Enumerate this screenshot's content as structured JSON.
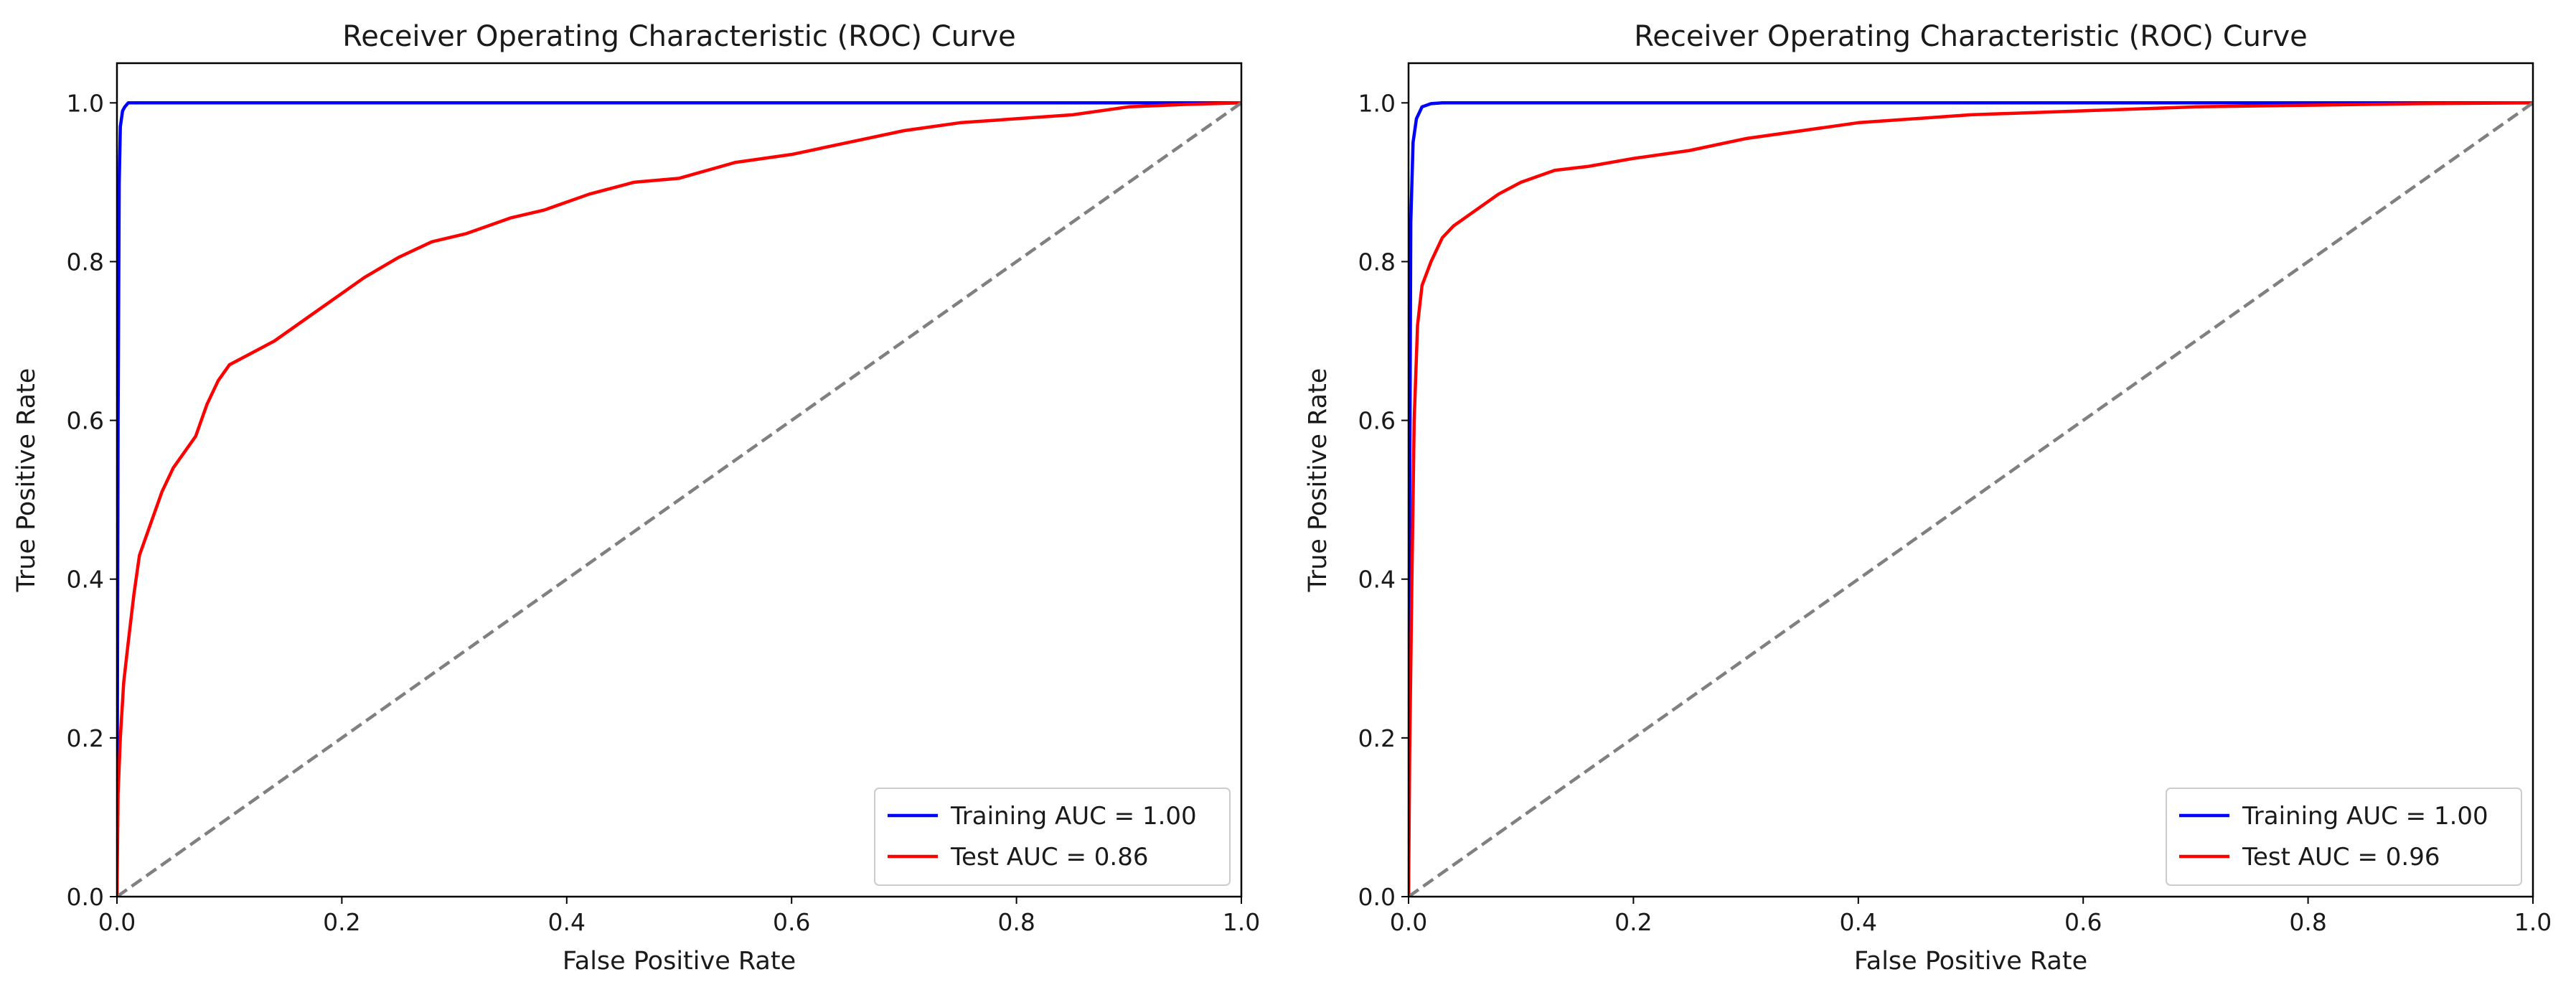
{
  "chart_data": [
    {
      "type": "line",
      "title": "Receiver Operating Characteristic (ROC) Curve",
      "xlabel": "False Positive Rate",
      "ylabel": "True Positive Rate",
      "xlim": [
        0,
        1
      ],
      "ylim": [
        0,
        1.05
      ],
      "xticks": [
        0.0,
        0.2,
        0.4,
        0.6,
        0.8,
        1.0
      ],
      "xtick_labels": [
        "0.0",
        "0.2",
        "0.4",
        "0.6",
        "0.8",
        "1.0"
      ],
      "yticks": [
        0.0,
        0.2,
        0.4,
        0.6,
        0.8,
        1.0
      ],
      "ytick_labels": [
        "0.0",
        "0.2",
        "0.4",
        "0.6",
        "0.8",
        "1.0"
      ],
      "grid": false,
      "legend_position": "lower-right",
      "series": [
        {
          "name": "Training AUC = 1.00",
          "color": "#0000ff",
          "points": [
            [
              0,
              0
            ],
            [
              0.001,
              0.6
            ],
            [
              0.002,
              0.9
            ],
            [
              0.003,
              0.97
            ],
            [
              0.005,
              0.99
            ],
            [
              0.007,
              0.995
            ],
            [
              0.01,
              1.0
            ],
            [
              1.0,
              1.0
            ]
          ]
        },
        {
          "name": "Test AUC = 0.86",
          "color": "#ff0000",
          "points": [
            [
              0,
              0
            ],
            [
              0.001,
              0.13
            ],
            [
              0.003,
              0.2
            ],
            [
              0.006,
              0.27
            ],
            [
              0.01,
              0.32
            ],
            [
              0.015,
              0.38
            ],
            [
              0.02,
              0.43
            ],
            [
              0.03,
              0.47
            ],
            [
              0.04,
              0.51
            ],
            [
              0.05,
              0.54
            ],
            [
              0.06,
              0.56
            ],
            [
              0.07,
              0.58
            ],
            [
              0.08,
              0.62
            ],
            [
              0.09,
              0.65
            ],
            [
              0.1,
              0.67
            ],
            [
              0.12,
              0.685
            ],
            [
              0.14,
              0.7
            ],
            [
              0.16,
              0.72
            ],
            [
              0.18,
              0.74
            ],
            [
              0.2,
              0.76
            ],
            [
              0.22,
              0.78
            ],
            [
              0.25,
              0.805
            ],
            [
              0.28,
              0.825
            ],
            [
              0.31,
              0.835
            ],
            [
              0.35,
              0.855
            ],
            [
              0.38,
              0.865
            ],
            [
              0.42,
              0.885
            ],
            [
              0.46,
              0.9
            ],
            [
              0.5,
              0.905
            ],
            [
              0.55,
              0.925
            ],
            [
              0.6,
              0.935
            ],
            [
              0.65,
              0.95
            ],
            [
              0.7,
              0.965
            ],
            [
              0.75,
              0.975
            ],
            [
              0.8,
              0.98
            ],
            [
              0.85,
              0.985
            ],
            [
              0.9,
              0.995
            ],
            [
              0.95,
              0.998
            ],
            [
              1.0,
              1.0
            ]
          ]
        },
        {
          "name": "",
          "color": "#808080",
          "dashed": true,
          "points": [
            [
              0,
              0
            ],
            [
              1,
              1
            ]
          ]
        }
      ]
    },
    {
      "type": "line",
      "title": "Receiver Operating Characteristic (ROC) Curve",
      "xlabel": "False Positive Rate",
      "ylabel": "True Positive Rate",
      "xlim": [
        0,
        1
      ],
      "ylim": [
        0,
        1.05
      ],
      "xticks": [
        0.0,
        0.2,
        0.4,
        0.6,
        0.8,
        1.0
      ],
      "xtick_labels": [
        "0.0",
        "0.2",
        "0.4",
        "0.6",
        "0.8",
        "1.0"
      ],
      "yticks": [
        0.0,
        0.2,
        0.4,
        0.6,
        0.8,
        1.0
      ],
      "ytick_labels": [
        "0.0",
        "0.2",
        "0.4",
        "0.6",
        "0.8",
        "1.0"
      ],
      "grid": false,
      "legend_position": "lower-right",
      "series": [
        {
          "name": "Training AUC = 1.00",
          "color": "#0000ff",
          "points": [
            [
              0,
              0
            ],
            [
              0.001,
              0.5
            ],
            [
              0.002,
              0.85
            ],
            [
              0.004,
              0.95
            ],
            [
              0.007,
              0.98
            ],
            [
              0.012,
              0.995
            ],
            [
              0.02,
              0.999
            ],
            [
              0.03,
              1.0
            ],
            [
              1.0,
              1.0
            ]
          ]
        },
        {
          "name": "Test AUC = 0.96",
          "color": "#ff0000",
          "points": [
            [
              0,
              0
            ],
            [
              0.001,
              0.18
            ],
            [
              0.003,
              0.4
            ],
            [
              0.005,
              0.6
            ],
            [
              0.008,
              0.72
            ],
            [
              0.012,
              0.77
            ],
            [
              0.02,
              0.8
            ],
            [
              0.03,
              0.83
            ],
            [
              0.04,
              0.845
            ],
            [
              0.06,
              0.865
            ],
            [
              0.08,
              0.885
            ],
            [
              0.1,
              0.9
            ],
            [
              0.13,
              0.915
            ],
            [
              0.16,
              0.92
            ],
            [
              0.2,
              0.93
            ],
            [
              0.25,
              0.94
            ],
            [
              0.3,
              0.955
            ],
            [
              0.35,
              0.965
            ],
            [
              0.4,
              0.975
            ],
            [
              0.5,
              0.985
            ],
            [
              0.6,
              0.99
            ],
            [
              0.7,
              0.995
            ],
            [
              0.8,
              0.997
            ],
            [
              0.9,
              0.999
            ],
            [
              1.0,
              1.0
            ]
          ]
        },
        {
          "name": "",
          "color": "#808080",
          "dashed": true,
          "points": [
            [
              0,
              0
            ],
            [
              1,
              1
            ]
          ]
        }
      ]
    }
  ]
}
